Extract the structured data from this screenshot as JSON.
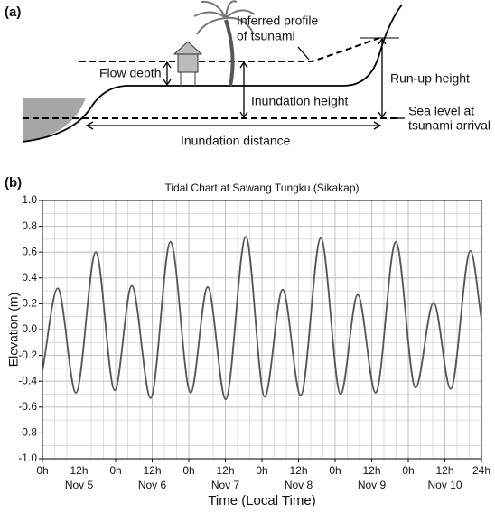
{
  "diagram": {
    "panel_label": "(a)",
    "inferred_profile": [
      "Inferred profile",
      "of tsunami"
    ],
    "flow_depth": "Flow depth",
    "run_up_height": "Run-up height",
    "inundation_height": "Inundation height",
    "sea_level": [
      "Sea level at",
      "tsunami arrival"
    ],
    "inundation_distance": "Inundation distance"
  },
  "chart_data": {
    "type": "line",
    "panel_label": "(b)",
    "title": "Tidal Chart at Sawang Tungku (Sikakap)",
    "ylabel": "Elevation (m)",
    "xlabel": "Time (Local Time)",
    "x": [
      0,
      5,
      11,
      17.5,
      23.7,
      29.3,
      35.5,
      42,
      48.6,
      54.2,
      60.1,
      66.7,
      72.9,
      78.8,
      84.7,
      91.3,
      97.8,
      103.4,
      109.3,
      115.9,
      122.4,
      128.3,
      133.9,
      140.4,
      144
    ],
    "series": [
      {
        "name": "Elevation",
        "color": "#555555",
        "values": [
          -0.32,
          0.32,
          -0.49,
          0.6,
          -0.47,
          0.34,
          -0.53,
          0.68,
          -0.49,
          0.33,
          -0.54,
          0.72,
          -0.52,
          0.31,
          -0.51,
          0.71,
          -0.5,
          0.27,
          -0.49,
          0.68,
          -0.45,
          0.21,
          -0.46,
          0.61,
          0.08
        ]
      }
    ],
    "xlim": [
      0,
      144
    ],
    "xticks": [
      {
        "value": 0,
        "label": "0h"
      },
      {
        "value": 12,
        "label": "12h"
      },
      {
        "value": 24,
        "label": "0h"
      },
      {
        "value": 36,
        "label": "12h"
      },
      {
        "value": 48,
        "label": "0h"
      },
      {
        "value": 60,
        "label": "12h"
      },
      {
        "value": 72,
        "label": "0h"
      },
      {
        "value": 84,
        "label": "12h"
      },
      {
        "value": 96,
        "label": "0h"
      },
      {
        "value": 108,
        "label": "12h"
      },
      {
        "value": 120,
        "label": "0h"
      },
      {
        "value": 132,
        "label": "12h"
      },
      {
        "value": 144,
        "label": "24h"
      }
    ],
    "xtick_dates": [
      {
        "value": 12,
        "label": "Nov 5"
      },
      {
        "value": 36,
        "label": "Nov 6"
      },
      {
        "value": 60,
        "label": "Nov 7"
      },
      {
        "value": 84,
        "label": "Nov 8"
      },
      {
        "value": 108,
        "label": "Nov 9"
      },
      {
        "value": 132,
        "label": "Nov 10"
      }
    ],
    "ylim": [
      -1,
      1
    ],
    "yticks": [
      {
        "value": 1,
        "label": "1.0"
      },
      0.8,
      0.6,
      0.4,
      0.2,
      {
        "value": 0,
        "label": "0.0"
      },
      -0.2,
      -0.4,
      -0.6,
      -0.8,
      {
        "value": -1,
        "label": "-1.0"
      }
    ],
    "grid": {
      "x_minor": 4,
      "y_minor": 0.1
    }
  }
}
